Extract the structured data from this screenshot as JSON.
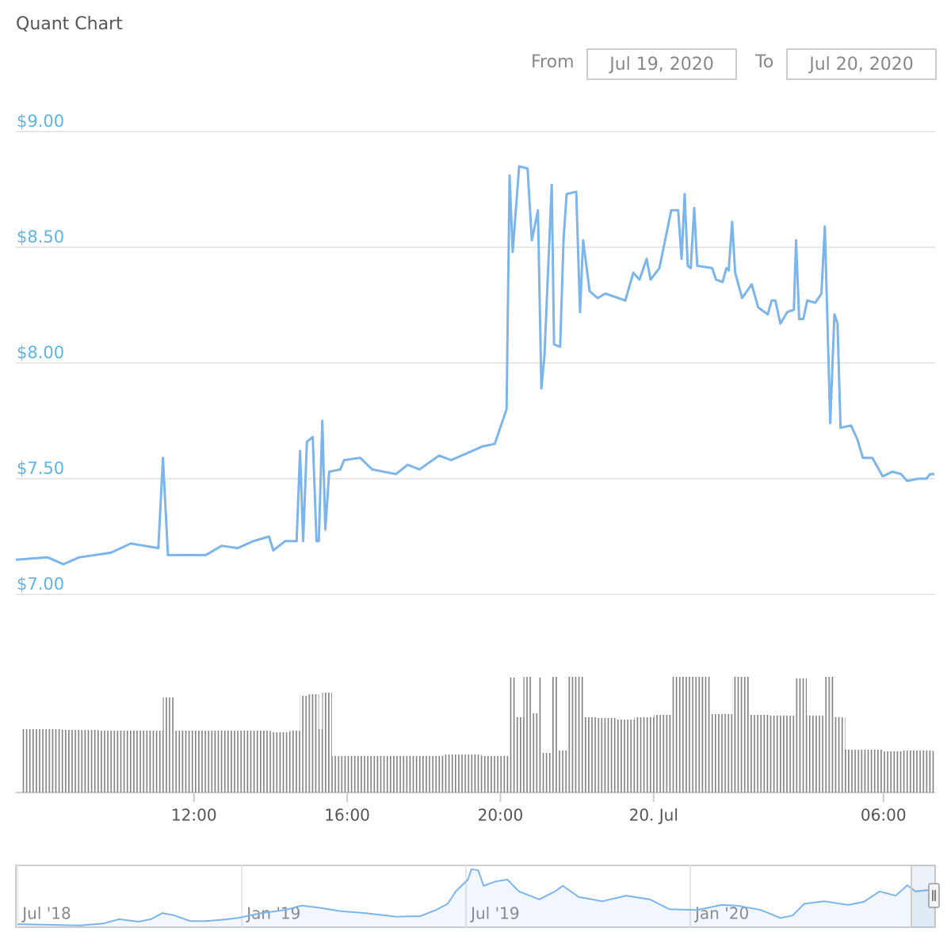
{
  "range_selector": {
    "from_label": "From",
    "from": "Jul 19, 2020",
    "to_label": "To",
    "to": "Jul 20, 2020"
  },
  "chart_data": [
    {
      "type": "line",
      "title": "Quant Chart",
      "x": [
        7.35,
        8.18,
        8.59,
        9.0,
        9.83,
        10.35,
        11.07,
        11.19,
        11.32,
        11.9,
        12.31,
        12.72,
        13.14,
        13.55,
        13.96,
        14.07,
        14.38,
        14.68,
        14.77,
        14.85,
        14.95,
        15.1,
        15.2,
        15.26,
        15.35,
        15.43,
        15.53,
        15.82,
        15.92,
        16.34,
        16.65,
        17.27,
        17.58,
        17.89,
        18.4,
        18.71,
        19.13,
        19.54,
        19.85,
        20.16,
        20.24,
        20.32,
        20.49,
        20.71,
        20.82,
        20.98,
        21.07,
        21.15,
        21.34,
        21.4,
        21.56,
        21.65,
        21.73,
        21.98,
        22.08,
        22.16,
        22.33,
        22.54,
        22.74,
        23.26,
        23.47,
        23.63,
        23.82,
        23.92,
        24.15,
        24.46,
        24.64,
        24.73,
        24.81,
        24.89,
        24.97,
        25.06,
        25.14,
        25.53,
        25.63,
        25.8,
        25.9,
        25.96,
        26.05,
        26.13,
        26.31,
        26.56,
        26.73,
        26.98,
        27.08,
        27.18,
        27.31,
        27.49,
        27.66,
        27.72,
        27.8,
        27.91,
        28.01,
        28.22,
        28.38,
        28.47,
        28.61,
        28.72,
        28.8,
        28.88,
        29.15,
        29.32,
        29.46,
        29.71,
        29.98,
        30.23,
        30.46,
        30.62,
        30.91,
        31.12,
        31.22,
        31.33
      ],
      "series": [
        {
          "color": "#7cb5ec",
          "values": [
            7.15,
            7.16,
            7.13,
            7.16,
            7.18,
            7.22,
            7.2,
            7.59,
            7.17,
            7.17,
            7.17,
            7.21,
            7.2,
            7.23,
            7.25,
            7.19,
            7.23,
            7.23,
            7.62,
            7.23,
            7.66,
            7.68,
            7.23,
            7.23,
            7.75,
            7.28,
            7.53,
            7.54,
            7.58,
            7.59,
            7.54,
            7.52,
            7.56,
            7.54,
            7.6,
            7.58,
            7.61,
            7.64,
            7.65,
            7.8,
            8.81,
            8.48,
            8.85,
            8.84,
            8.53,
            8.66,
            7.89,
            8.03,
            8.77,
            8.08,
            8.07,
            8.54,
            8.73,
            8.74,
            8.22,
            8.53,
            8.31,
            8.28,
            8.3,
            8.27,
            8.39,
            8.36,
            8.45,
            8.36,
            8.41,
            8.66,
            8.66,
            8.45,
            8.73,
            8.42,
            8.41,
            8.67,
            8.42,
            8.41,
            8.36,
            8.35,
            8.41,
            8.4,
            8.61,
            8.39,
            8.28,
            8.34,
            8.24,
            8.21,
            8.27,
            8.27,
            8.17,
            8.22,
            8.23,
            8.53,
            8.19,
            8.19,
            8.27,
            8.26,
            8.3,
            8.59,
            7.74,
            8.21,
            8.17,
            7.72,
            7.73,
            7.67,
            7.59,
            7.59,
            7.51,
            7.53,
            7.52,
            7.49,
            7.5,
            7.5,
            7.52,
            7.52
          ]
        }
      ],
      "xlim": [
        7.35,
        31.35
      ],
      "xticks": [
        {
          "value": 12,
          "label": "12:00"
        },
        {
          "value": 16,
          "label": "16:00"
        },
        {
          "value": 20,
          "label": "20:00"
        },
        {
          "value": 24,
          "label": "20. Jul"
        },
        {
          "value": 30,
          "label": "06:00"
        }
      ],
      "ylim": [
        7,
        9
      ],
      "yticks": [
        {
          "value": 7,
          "label": "$7.00"
        },
        {
          "value": 7.5,
          "label": "$7.50"
        },
        {
          "value": 8,
          "label": "$8.00"
        },
        {
          "value": 8.5,
          "label": "$8.50"
        },
        {
          "value": 9,
          "label": "$9.00"
        }
      ],
      "grid": true
    },
    {
      "type": "bar",
      "color": "#808080",
      "x": [
        7.5,
        8.0,
        8.5,
        9.0,
        9.5,
        10.0,
        10.5,
        11.0,
        11.19,
        11.5,
        12.0,
        12.5,
        13.0,
        13.5,
        14.0,
        14.5,
        14.77,
        14.95,
        15.1,
        15.26,
        15.35,
        15.6,
        16.0,
        16.5,
        17.0,
        17.5,
        18.0,
        18.5,
        19.0,
        19.5,
        20.0,
        20.24,
        20.4,
        20.6,
        20.8,
        21.0,
        21.1,
        21.34,
        21.5,
        21.73,
        22.0,
        22.16,
        22.5,
        23.0,
        23.5,
        24.0,
        24.46,
        24.64,
        24.81,
        25.06,
        25.5,
        26.05,
        26.5,
        27.0,
        27.72,
        28.0,
        28.47,
        28.7,
        29.0,
        29.5,
        30.0,
        30.5,
        31.0,
        31.3
      ],
      "values": [
        80,
        80,
        79,
        79,
        78,
        78,
        78,
        78,
        120,
        78,
        78,
        78,
        78,
        78,
        76,
        78,
        122,
        124,
        124,
        80,
        126,
        46,
        46,
        46,
        46,
        46,
        46,
        48,
        48,
        46,
        46,
        145,
        95,
        146,
        100,
        145,
        50,
        146,
        53,
        146,
        146,
        95,
        94,
        92,
        95,
        98,
        146,
        146,
        146,
        146,
        99,
        146,
        98,
        97,
        144,
        97,
        146,
        95,
        54,
        54,
        52,
        53,
        53,
        52
      ],
      "xlim": [
        7.35,
        31.35
      ],
      "ylim": [
        0,
        150
      ]
    },
    {
      "type": "area",
      "color": "#7cb5ec",
      "x": [
        2018.5,
        2018.567,
        2018.638,
        2018.691,
        2018.726,
        2018.77,
        2018.797,
        2018.823,
        2018.85,
        2018.885,
        2018.92,
        2018.956,
        2018.991,
        2019.044,
        2019.097,
        2019.133,
        2019.168,
        2019.221,
        2019.274,
        2019.345,
        2019.398,
        2019.433,
        2019.459,
        2019.477,
        2019.504,
        2019.512,
        2019.527,
        2019.539,
        2019.565,
        2019.592,
        2019.618,
        2019.663,
        2019.698,
        2019.716,
        2019.751,
        2019.804,
        2019.857,
        2019.91,
        2019.954,
        2020.016,
        2020.069,
        2020.104,
        2020.157,
        2020.201,
        2020.228,
        2020.254,
        2020.299,
        2020.352,
        2020.387,
        2020.422,
        2020.458,
        2020.484,
        2020.502,
        2020.528,
        2020.546
      ],
      "values": [
        5,
        4,
        3,
        6,
        13,
        9,
        13,
        23,
        19,
        10,
        10,
        12,
        15,
        23,
        28,
        35,
        32,
        26,
        23,
        17,
        18,
        28,
        38,
        58,
        77,
        94,
        92,
        67,
        74,
        77,
        58,
        45,
        58,
        67,
        49,
        42,
        51,
        45,
        29,
        28,
        36,
        35,
        28,
        15,
        19,
        38,
        42,
        36,
        41,
        58,
        51,
        68,
        58,
        60,
        56
      ],
      "xlim": [
        2018.496,
        2020.546
      ],
      "ylim": [
        0,
        100
      ],
      "xticks": [
        {
          "value": 2018.5,
          "label": "Jul '18"
        },
        {
          "value": 2019,
          "label": "Jan '19"
        },
        {
          "value": 2019.5,
          "label": "Jul '19"
        },
        {
          "value": 2020,
          "label": "Jan '20"
        }
      ],
      "grid": true
    }
  ]
}
